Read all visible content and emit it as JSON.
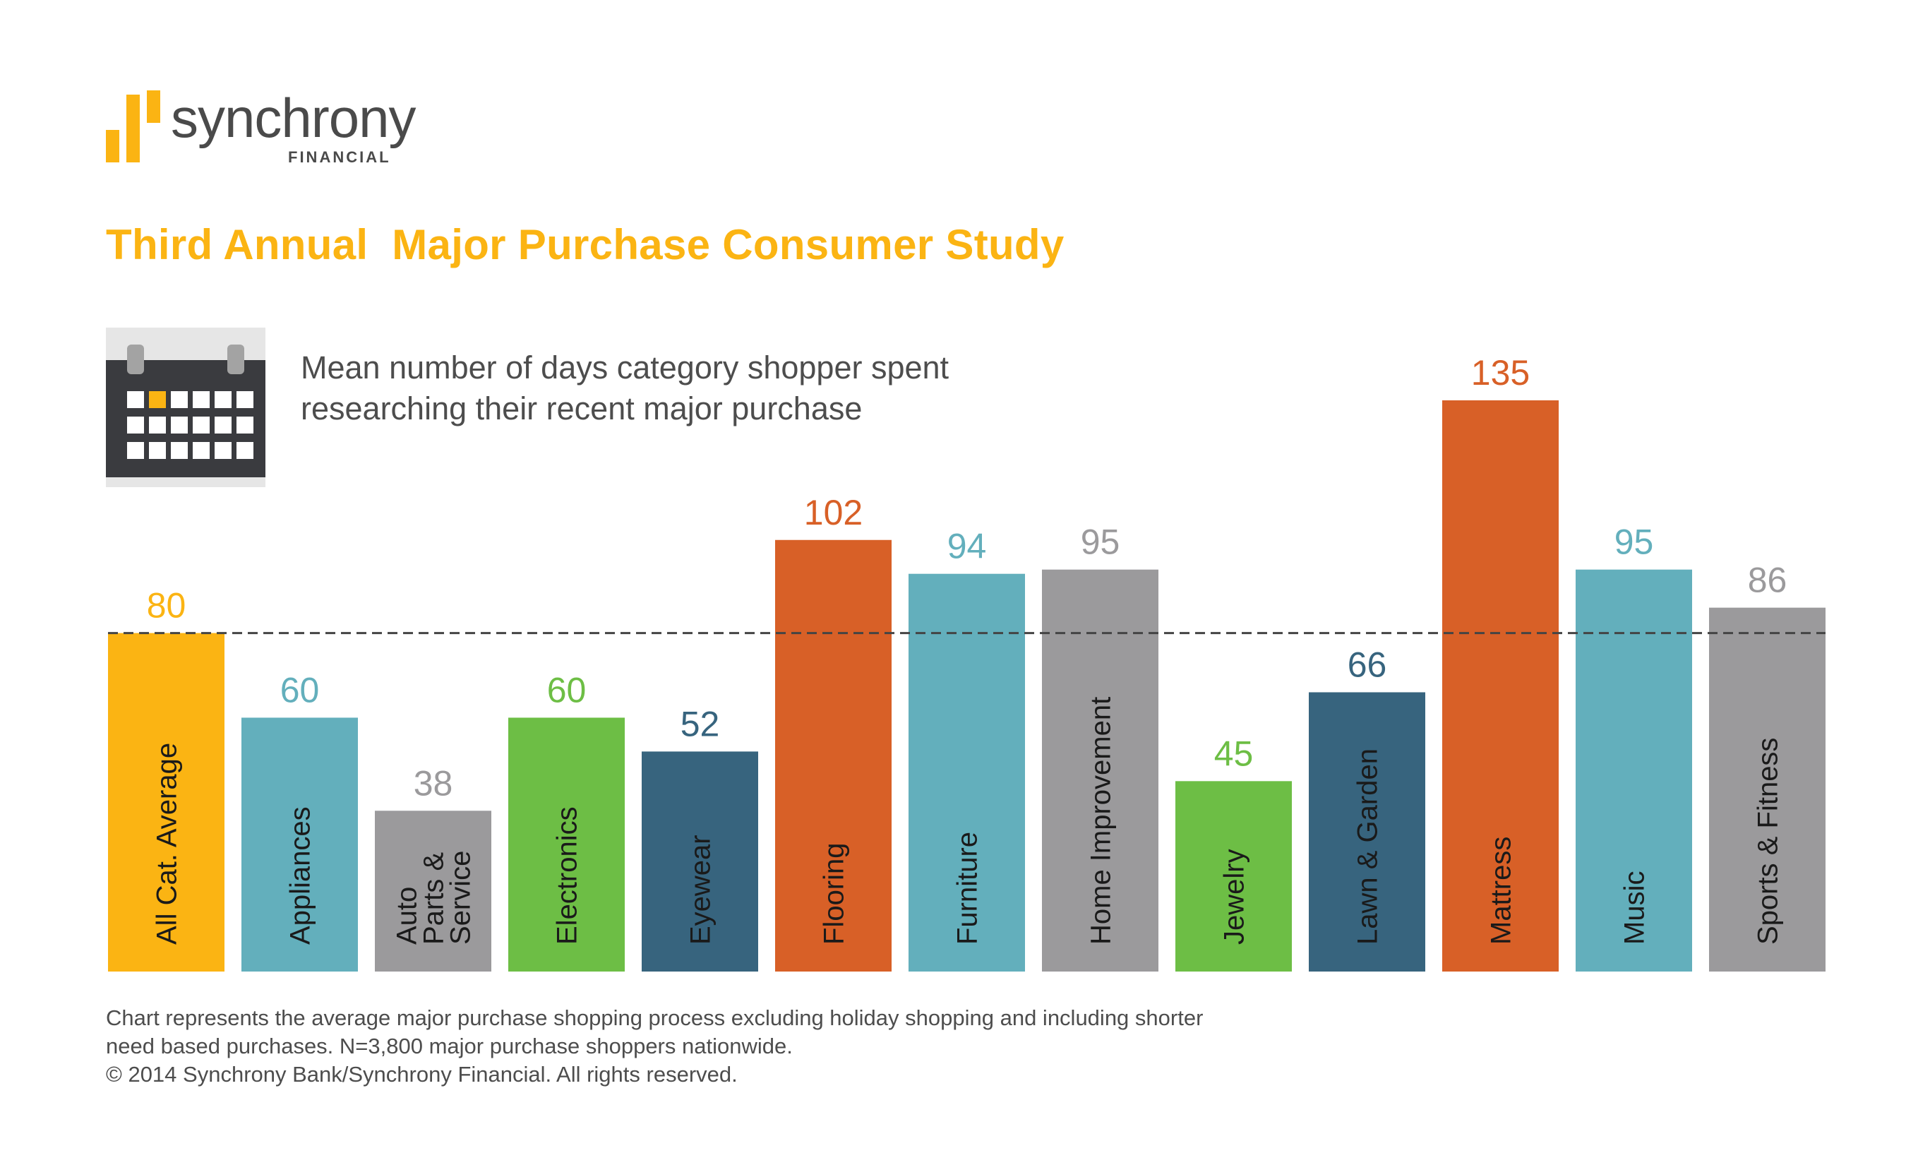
{
  "brand": {
    "name": "synchrony",
    "sub": "FINANCIAL",
    "color": "#FBB413"
  },
  "title": "Third Annual  Major Purchase Consumer Study",
  "subtitle": "Mean number of days category shopper spent researching their recent major purchase",
  "icon": "calendar-icon",
  "chart_data": {
    "type": "bar",
    "title": "Third Annual  Major Purchase Consumer Study",
    "subtitle": "Mean number of days category shopper spent researching their recent major purchase",
    "ylim": [
      0,
      135
    ],
    "grid": false,
    "reference_line": {
      "value": 80,
      "style": "dashed"
    },
    "categories": [
      "All Cat. Average",
      "Appliances",
      "Auto Parts & Service",
      "Electronics",
      "Eyewear",
      "Flooring",
      "Furniture",
      "Home Improvement",
      "Jewelry",
      "Lawn & Garden",
      "Mattress",
      "Music",
      "Sports & Fitness"
    ],
    "category_lines": [
      [
        "All Cat. Average"
      ],
      [
        "Appliances"
      ],
      [
        "Auto",
        "Parts &",
        "Service"
      ],
      [
        "Electronics"
      ],
      [
        "Eyewear"
      ],
      [
        "Flooring"
      ],
      [
        "Furniture"
      ],
      [
        "Home Improvement"
      ],
      [
        "Jewelry"
      ],
      [
        "Lawn & Garden"
      ],
      [
        "Mattress"
      ],
      [
        "Music"
      ],
      [
        "Sports & Fitness"
      ]
    ],
    "values": [
      80,
      60,
      38,
      60,
      52,
      102,
      94,
      95,
      45,
      66,
      135,
      95,
      86
    ],
    "colors": [
      "#FBB413",
      "#63AFBC",
      "#9B9A9C",
      "#6DBE45",
      "#37647E",
      "#D86027",
      "#63AFBC",
      "#9B9A9C",
      "#6DBE45",
      "#37647E",
      "#D86027",
      "#63AFBC",
      "#9B9A9C"
    ]
  },
  "footnote": [
    "Chart represents the average major purchase shopping process excluding holiday shopping and including shorter",
    "need based purchases. N=3,800 major purchase shoppers nationwide.",
    "© 2014 Synchrony Bank/Synchrony Financial. All rights reserved."
  ]
}
